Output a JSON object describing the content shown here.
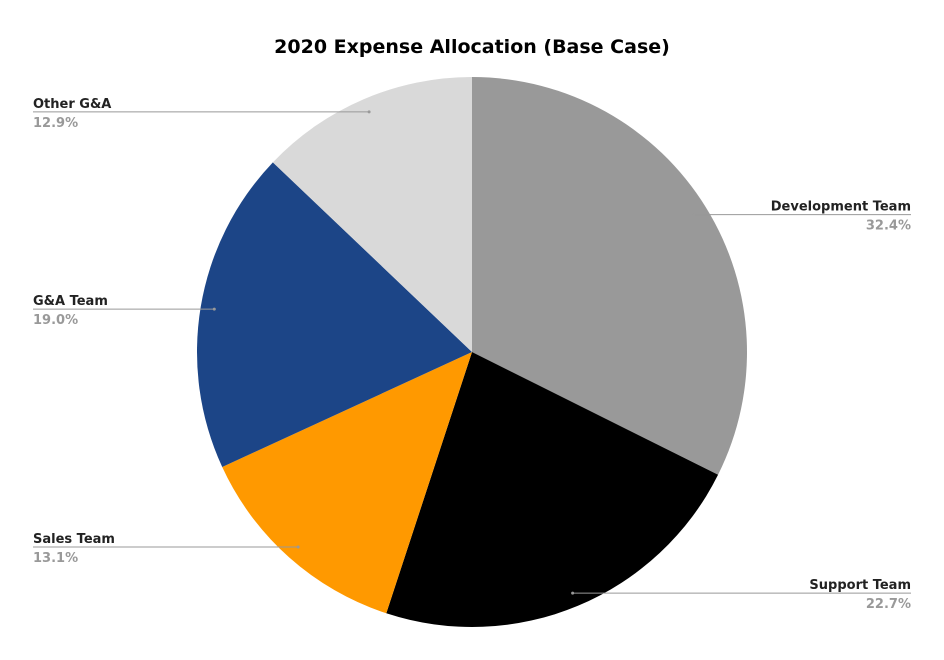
{
  "chart_data": {
    "type": "pie",
    "title": "2020 Expense Allocation (Base Case)",
    "categories": [
      "Development Team",
      "Support Team",
      "Sales Team",
      "G&A Team",
      "Other G&A"
    ],
    "values": [
      32.4,
      22.7,
      13.1,
      19.0,
      12.9
    ],
    "value_labels": [
      "32.4%",
      "22.7%",
      "13.1%",
      "19.0%",
      "12.9%"
    ],
    "colors": [
      "#999999",
      "#000000",
      "#ff9900",
      "#1c4587",
      "#d9d9d9"
    ]
  }
}
